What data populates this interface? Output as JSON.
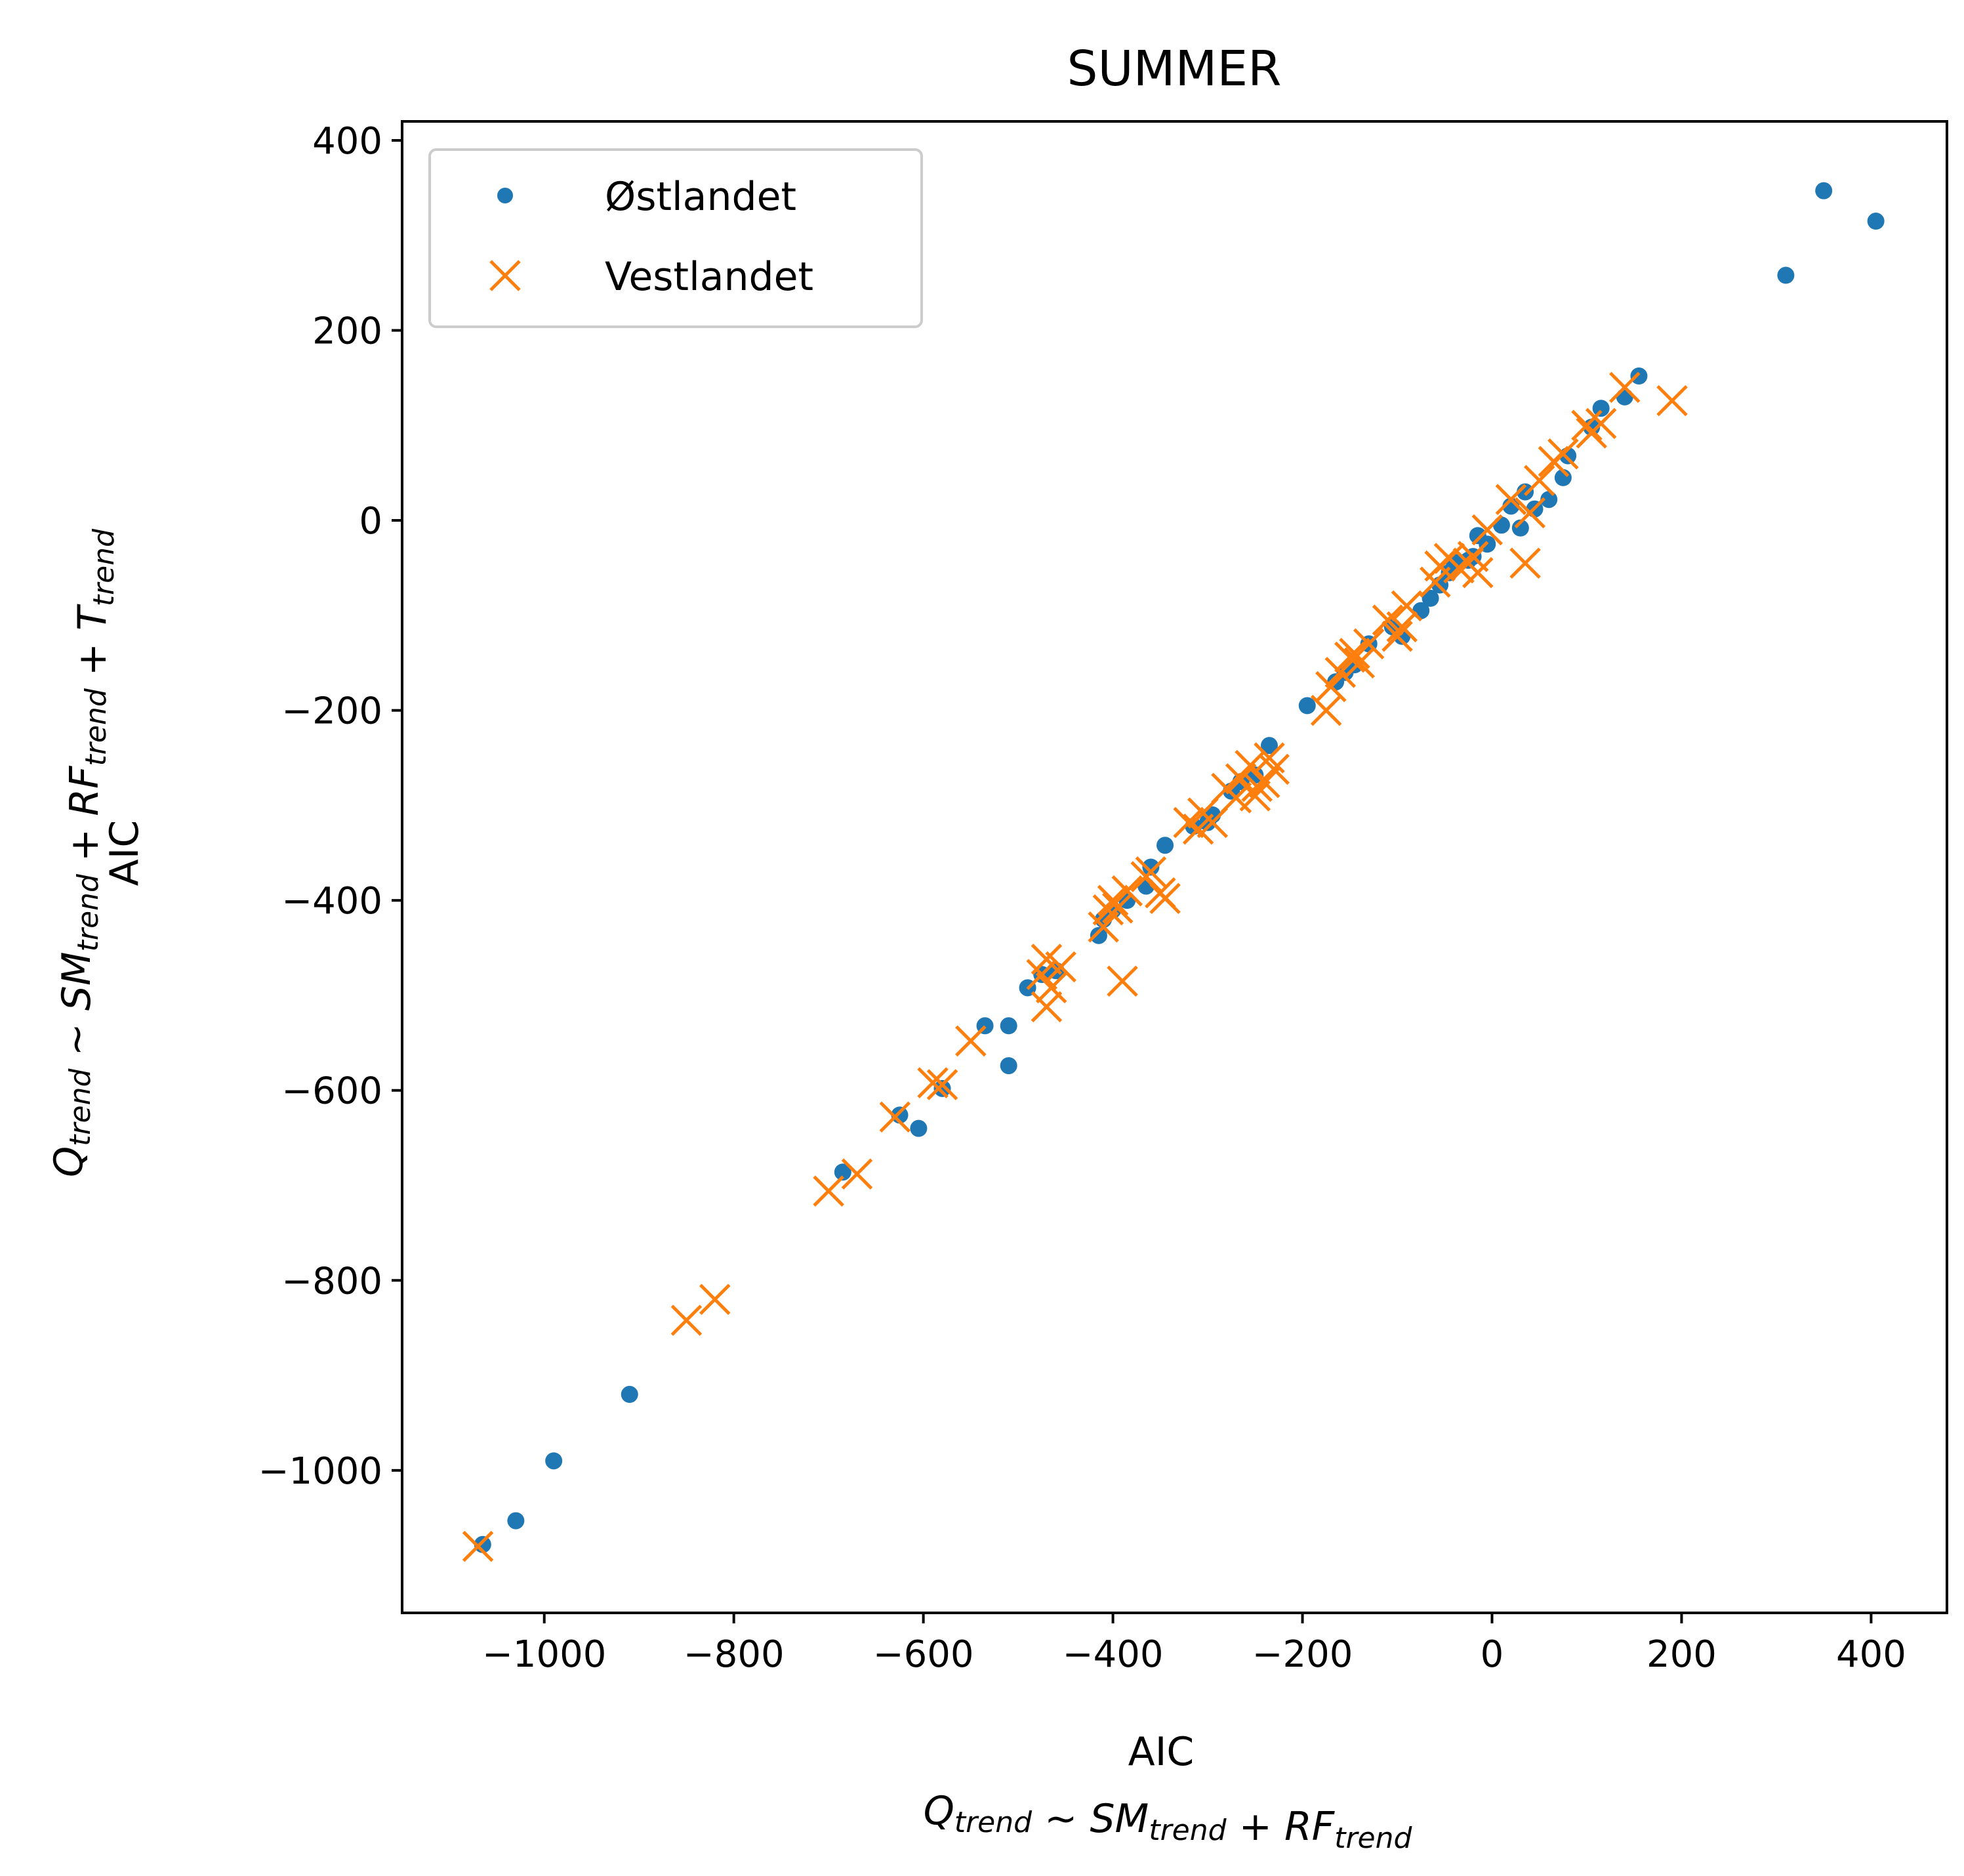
{
  "chart_data": {
    "type": "scatter",
    "title": "SUMMER",
    "xlabel": "AIC",
    "xlabel_formula": [
      {
        "t": "Q",
        "s": "trend"
      },
      {
        "t": " ~ ",
        "up": true
      },
      {
        "t": "SM",
        "s": "trend"
      },
      {
        "t": " + ",
        "up": true
      },
      {
        "t": "RF",
        "s": "trend"
      }
    ],
    "ylabel": "AIC",
    "ylabel_formula": [
      {
        "t": "Q",
        "s": "trend"
      },
      {
        "t": " ~ ",
        "up": true
      },
      {
        "t": "SM",
        "s": "trend"
      },
      {
        "t": " + ",
        "up": true
      },
      {
        "t": "RF",
        "s": "trend"
      },
      {
        "t": " + ",
        "up": true
      },
      {
        "t": "T",
        "s": "trend"
      }
    ],
    "xlim": [
      -1150,
      480
    ],
    "ylim": [
      -1150,
      420
    ],
    "xticks": [
      -1000,
      -800,
      -600,
      -400,
      -200,
      0,
      200,
      400
    ],
    "xtick_labels": [
      "−1000",
      "−800",
      "−600",
      "−400",
      "−200",
      "0",
      "200",
      "400"
    ],
    "yticks": [
      -1000,
      -800,
      -600,
      -400,
      -200,
      0,
      200,
      400
    ],
    "ytick_labels": [
      "−1000",
      "−800",
      "−600",
      "−400",
      "−200",
      "0",
      "200",
      "400"
    ],
    "grid": false,
    "legend_position": "top-left",
    "series": [
      {
        "name": "Østlandet",
        "marker": "dot",
        "color": "#1f77b4",
        "points": [
          [
            -1065,
            -1078
          ],
          [
            -1030,
            -1053
          ],
          [
            -990,
            -990
          ],
          [
            -910,
            -920
          ],
          [
            -685,
            -686
          ],
          [
            -625,
            -626
          ],
          [
            -605,
            -640
          ],
          [
            -580,
            -598
          ],
          [
            -535,
            -532
          ],
          [
            -510,
            -532
          ],
          [
            -510,
            -574
          ],
          [
            -490,
            -492
          ],
          [
            -475,
            -478
          ],
          [
            -460,
            -474
          ],
          [
            -415,
            -437
          ],
          [
            -410,
            -420
          ],
          [
            -400,
            -410
          ],
          [
            -385,
            -400
          ],
          [
            -365,
            -385
          ],
          [
            -360,
            -365
          ],
          [
            -345,
            -342
          ],
          [
            -315,
            -322
          ],
          [
            -300,
            -318
          ],
          [
            -295,
            -310
          ],
          [
            -275,
            -285
          ],
          [
            -265,
            -275
          ],
          [
            -250,
            -268
          ],
          [
            -235,
            -237
          ],
          [
            -195,
            -195
          ],
          [
            -165,
            -170
          ],
          [
            -155,
            -160
          ],
          [
            -145,
            -152
          ],
          [
            -130,
            -130
          ],
          [
            -105,
            -112
          ],
          [
            -95,
            -122
          ],
          [
            -75,
            -95
          ],
          [
            -65,
            -82
          ],
          [
            -55,
            -68
          ],
          [
            -45,
            -55
          ],
          [
            -40,
            -44
          ],
          [
            -25,
            -42
          ],
          [
            -20,
            -38
          ],
          [
            -15,
            -16
          ],
          [
            -5,
            -25
          ],
          [
            10,
            -5
          ],
          [
            20,
            15
          ],
          [
            30,
            -8
          ],
          [
            35,
            30
          ],
          [
            45,
            12
          ],
          [
            60,
            22
          ],
          [
            75,
            45
          ],
          [
            80,
            68
          ],
          [
            105,
            98
          ],
          [
            115,
            118
          ],
          [
            140,
            130
          ],
          [
            155,
            152
          ],
          [
            310,
            258
          ],
          [
            350,
            347
          ],
          [
            405,
            315
          ]
        ]
      },
      {
        "name": "Vestlandet",
        "marker": "x",
        "color": "#ff7f0e",
        "points": [
          [
            -1070,
            -1080
          ],
          [
            -850,
            -842
          ],
          [
            -820,
            -820
          ],
          [
            -700,
            -706
          ],
          [
            -670,
            -688
          ],
          [
            -630,
            -628
          ],
          [
            -590,
            -592
          ],
          [
            -580,
            -594
          ],
          [
            -550,
            -548
          ],
          [
            -475,
            -478
          ],
          [
            -470,
            -512
          ],
          [
            -470,
            -462
          ],
          [
            -465,
            -492
          ],
          [
            -455,
            -470
          ],
          [
            -410,
            -428
          ],
          [
            -405,
            -410
          ],
          [
            -400,
            -400
          ],
          [
            -395,
            -408
          ],
          [
            -390,
            -485
          ],
          [
            -385,
            -390
          ],
          [
            -365,
            -375
          ],
          [
            -360,
            -370
          ],
          [
            -350,
            -392
          ],
          [
            -345,
            -398
          ],
          [
            -320,
            -318
          ],
          [
            -310,
            -325
          ],
          [
            -305,
            -308
          ],
          [
            -295,
            -318
          ],
          [
            -280,
            -282
          ],
          [
            -270,
            -292
          ],
          [
            -265,
            -272
          ],
          [
            -255,
            -258
          ],
          [
            -250,
            -290
          ],
          [
            -248,
            -280
          ],
          [
            -240,
            -276
          ],
          [
            -235,
            -250
          ],
          [
            -230,
            -262
          ],
          [
            -175,
            -200
          ],
          [
            -170,
            -175
          ],
          [
            -160,
            -160
          ],
          [
            -150,
            -144
          ],
          [
            -145,
            -140
          ],
          [
            -140,
            -150
          ],
          [
            -130,
            -130
          ],
          [
            -110,
            -105
          ],
          [
            -100,
            -122
          ],
          [
            -95,
            -112
          ],
          [
            -90,
            -90
          ],
          [
            -60,
            -65
          ],
          [
            -55,
            -48
          ],
          [
            -45,
            -40
          ],
          [
            -35,
            -50
          ],
          [
            -25,
            -45
          ],
          [
            -20,
            -38
          ],
          [
            -15,
            -55
          ],
          [
            -5,
            -10
          ],
          [
            20,
            22
          ],
          [
            35,
            -45
          ],
          [
            40,
            8
          ],
          [
            50,
            42
          ],
          [
            65,
            62
          ],
          [
            75,
            70
          ],
          [
            100,
            100
          ],
          [
            105,
            92
          ],
          [
            115,
            102
          ],
          [
            140,
            140
          ],
          [
            190,
            126
          ]
        ]
      }
    ]
  }
}
